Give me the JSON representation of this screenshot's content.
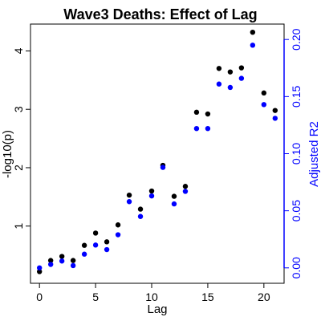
{
  "chart_data": {
    "type": "scatter",
    "title": "Wave3 Deaths: Effect of Lag",
    "xlabel": "Lag",
    "ylabel": "-log10(p)",
    "y2label": "Adjusted R2",
    "xlim": [
      -0.8,
      21.8
    ],
    "ylim": [
      0.02,
      4.46
    ],
    "y2lim": [
      -0.0135,
      0.2135
    ],
    "xticks": [
      "0",
      "5",
      "10",
      "15",
      "20"
    ],
    "yticks": [
      "1",
      "2",
      "3",
      "4"
    ],
    "y2ticks": [
      "0.00",
      "0.05",
      "0.10",
      "0.15",
      "0.20"
    ],
    "grid": false,
    "legend": "none",
    "x": [
      0,
      1,
      2,
      3,
      4,
      5,
      6,
      7,
      8,
      9,
      10,
      11,
      12,
      13,
      14,
      15,
      16,
      17,
      18,
      19,
      20,
      21
    ],
    "series": [
      {
        "axis": "left",
        "color": "#000000",
        "values": [
          0.22,
          0.41,
          0.48,
          0.41,
          0.67,
          0.88,
          0.73,
          1.02,
          1.53,
          1.29,
          1.6,
          2.04,
          1.51,
          1.68,
          2.95,
          2.92,
          3.7,
          3.64,
          3.71,
          4.32,
          3.28,
          2.98
        ]
      },
      {
        "axis": "right",
        "color": "#0000ff",
        "values": [
          0.0,
          0.003,
          0.006,
          0.002,
          0.012,
          0.02,
          0.016,
          0.029,
          0.058,
          0.045,
          0.063,
          0.088,
          0.056,
          0.067,
          0.122,
          0.122,
          0.161,
          0.158,
          0.166,
          0.195,
          0.143,
          0.131
        ]
      }
    ]
  }
}
